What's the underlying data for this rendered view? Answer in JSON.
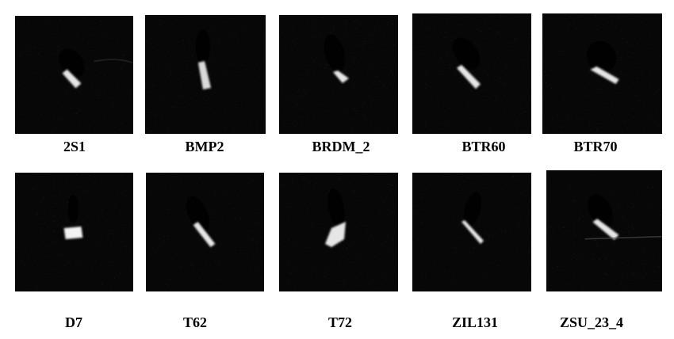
{
  "rows": [
    {
      "tiles": [
        {
          "label": "2S1"
        },
        {
          "label": "BMP2"
        },
        {
          "label": "BRDM_2"
        },
        {
          "label": "BTR60"
        },
        {
          "label": "BTR70"
        }
      ]
    },
    {
      "tiles": [
        {
          "label": "D7"
        },
        {
          "label": "T62"
        },
        {
          "label": "T72"
        },
        {
          "label": "ZIL131"
        },
        {
          "label": "ZSU_23_4"
        }
      ]
    }
  ]
}
